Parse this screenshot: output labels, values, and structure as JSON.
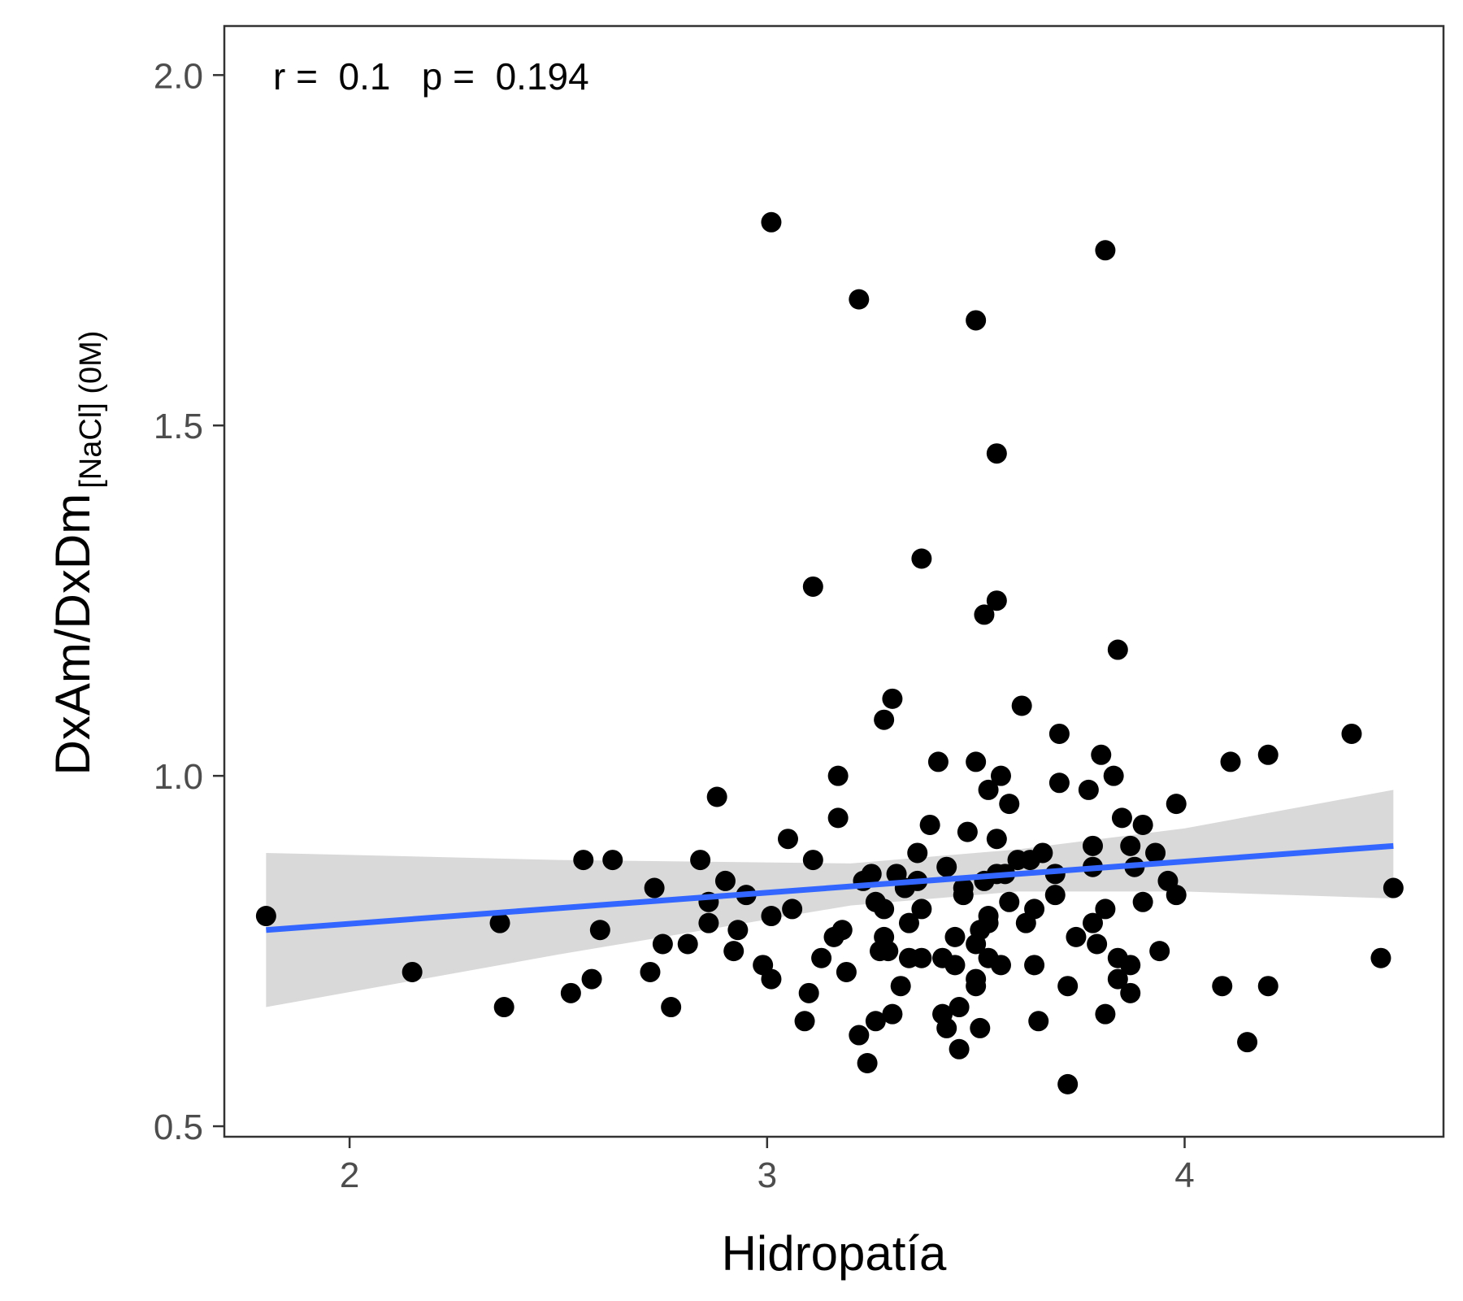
{
  "chart_data": {
    "type": "scatter",
    "xlabel": "Hidropatía",
    "ylabel_main": "DxAm/DxDm",
    "ylabel_sub": "[NaCl] (0M)",
    "annotation": "r =  0.1   p =  0.194",
    "xlim": [
      1.7,
      4.62
    ],
    "ylim": [
      0.485,
      2.07
    ],
    "x_ticks": [
      2,
      3,
      4
    ],
    "y_ticks": [
      0.5,
      1.0,
      1.5,
      2.0
    ],
    "x_tick_labels": [
      "2",
      "3",
      "4"
    ],
    "y_tick_labels": [
      "0.5",
      "1.0",
      "1.5",
      "2.0"
    ],
    "grid": false,
    "colors": {
      "points": "#000000",
      "fit_line": "#3366ff",
      "band": "#bfbfbf",
      "axis": "#333333"
    },
    "fit": {
      "x": [
        1.8,
        4.5
      ],
      "y": [
        0.78,
        0.9
      ]
    },
    "band": {
      "x": [
        1.8,
        2.5,
        3.2,
        3.6,
        4.0,
        4.5
      ],
      "upper": [
        0.89,
        0.88,
        0.875,
        0.895,
        0.925,
        0.98
      ],
      "lower": [
        0.67,
        0.745,
        0.815,
        0.835,
        0.835,
        0.825
      ]
    },
    "points": [
      [
        3.01,
        1.79
      ],
      [
        3.81,
        1.75
      ],
      [
        3.22,
        1.68
      ],
      [
        3.5,
        1.65
      ],
      [
        3.55,
        1.46
      ],
      [
        3.37,
        1.31
      ],
      [
        3.11,
        1.27
      ],
      [
        3.55,
        1.25
      ],
      [
        3.52,
        1.23
      ],
      [
        3.84,
        1.18
      ],
      [
        3.3,
        1.11
      ],
      [
        3.61,
        1.1
      ],
      [
        3.28,
        1.08
      ],
      [
        3.7,
        1.06
      ],
      [
        4.4,
        1.06
      ],
      [
        4.2,
        1.03
      ],
      [
        3.8,
        1.03
      ],
      [
        3.5,
        1.02
      ],
      [
        3.41,
        1.02
      ],
      [
        4.11,
        1.02
      ],
      [
        3.17,
        1.0
      ],
      [
        3.56,
        1.0
      ],
      [
        3.83,
        1.0
      ],
      [
        3.7,
        0.99
      ],
      [
        3.77,
        0.98
      ],
      [
        3.53,
        0.98
      ],
      [
        2.88,
        0.97
      ],
      [
        3.58,
        0.96
      ],
      [
        3.98,
        0.96
      ],
      [
        3.85,
        0.94
      ],
      [
        3.17,
        0.94
      ],
      [
        3.9,
        0.93
      ],
      [
        3.39,
        0.93
      ],
      [
        3.48,
        0.92
      ],
      [
        3.55,
        0.91
      ],
      [
        3.05,
        0.91
      ],
      [
        3.87,
        0.9
      ],
      [
        3.78,
        0.9
      ],
      [
        3.36,
        0.89
      ],
      [
        3.93,
        0.89
      ],
      [
        2.56,
        0.88
      ],
      [
        2.63,
        0.88
      ],
      [
        2.84,
        0.88
      ],
      [
        3.11,
        0.88
      ],
      [
        3.43,
        0.87
      ],
      [
        3.78,
        0.87
      ],
      [
        3.25,
        0.86
      ],
      [
        3.31,
        0.86
      ],
      [
        3.57,
        0.86
      ],
      [
        3.96,
        0.85
      ],
      [
        2.9,
        0.85
      ],
      [
        3.23,
        0.85
      ],
      [
        2.73,
        0.84
      ],
      [
        2.95,
        0.83
      ],
      [
        3.47,
        0.83
      ],
      [
        3.69,
        0.83
      ],
      [
        3.98,
        0.83
      ],
      [
        4.5,
        0.84
      ],
      [
        2.86,
        0.82
      ],
      [
        3.06,
        0.81
      ],
      [
        3.28,
        0.81
      ],
      [
        3.37,
        0.81
      ],
      [
        3.64,
        0.81
      ],
      [
        3.81,
        0.81
      ],
      [
        3.9,
        0.82
      ],
      [
        1.8,
        0.8
      ],
      [
        3.01,
        0.8
      ],
      [
        3.53,
        0.8
      ],
      [
        3.18,
        0.78
      ],
      [
        3.34,
        0.79
      ],
      [
        3.62,
        0.79
      ],
      [
        2.36,
        0.79
      ],
      [
        2.6,
        0.78
      ],
      [
        2.86,
        0.79
      ],
      [
        2.93,
        0.78
      ],
      [
        3.28,
        0.77
      ],
      [
        3.51,
        0.78
      ],
      [
        3.78,
        0.79
      ],
      [
        2.75,
        0.76
      ],
      [
        2.81,
        0.76
      ],
      [
        3.16,
        0.77
      ],
      [
        3.42,
        0.74
      ],
      [
        3.5,
        0.76
      ],
      [
        3.79,
        0.76
      ],
      [
        2.92,
        0.75
      ],
      [
        3.29,
        0.75
      ],
      [
        3.34,
        0.74
      ],
      [
        3.13,
        0.74
      ],
      [
        3.84,
        0.74
      ],
      [
        3.94,
        0.75
      ],
      [
        4.47,
        0.74
      ],
      [
        2.99,
        0.73
      ],
      [
        3.19,
        0.72
      ],
      [
        3.45,
        0.73
      ],
      [
        3.53,
        0.74
      ],
      [
        3.64,
        0.73
      ],
      [
        3.87,
        0.73
      ],
      [
        2.15,
        0.72
      ],
      [
        2.72,
        0.72
      ],
      [
        2.58,
        0.71
      ],
      [
        3.01,
        0.71
      ],
      [
        3.84,
        0.71
      ],
      [
        3.5,
        0.71
      ],
      [
        2.53,
        0.69
      ],
      [
        3.32,
        0.7
      ],
      [
        3.72,
        0.7
      ],
      [
        3.5,
        0.7
      ],
      [
        4.09,
        0.7
      ],
      [
        4.2,
        0.7
      ],
      [
        3.87,
        0.69
      ],
      [
        3.1,
        0.69
      ],
      [
        2.37,
        0.67
      ],
      [
        2.77,
        0.67
      ],
      [
        3.42,
        0.66
      ],
      [
        3.46,
        0.67
      ],
      [
        3.3,
        0.66
      ],
      [
        3.81,
        0.66
      ],
      [
        3.09,
        0.65
      ],
      [
        3.26,
        0.65
      ],
      [
        3.65,
        0.65
      ],
      [
        3.43,
        0.64
      ],
      [
        3.51,
        0.64
      ],
      [
        3.22,
        0.63
      ],
      [
        4.15,
        0.62
      ],
      [
        3.46,
        0.61
      ],
      [
        3.24,
        0.59
      ],
      [
        3.72,
        0.56
      ],
      [
        3.47,
        0.84
      ],
      [
        3.6,
        0.88
      ],
      [
        3.66,
        0.89
      ],
      [
        3.55,
        0.86
      ],
      [
        3.36,
        0.85
      ],
      [
        3.52,
        0.85
      ],
      [
        3.69,
        0.86
      ],
      [
        3.33,
        0.84
      ],
      [
        3.58,
        0.82
      ],
      [
        3.45,
        0.77
      ],
      [
        3.37,
        0.74
      ],
      [
        3.56,
        0.73
      ],
      [
        3.26,
        0.82
      ],
      [
        3.53,
        0.79
      ],
      [
        3.74,
        0.77
      ],
      [
        3.27,
        0.75
      ],
      [
        3.63,
        0.88
      ],
      [
        3.88,
        0.87
      ]
    ]
  }
}
